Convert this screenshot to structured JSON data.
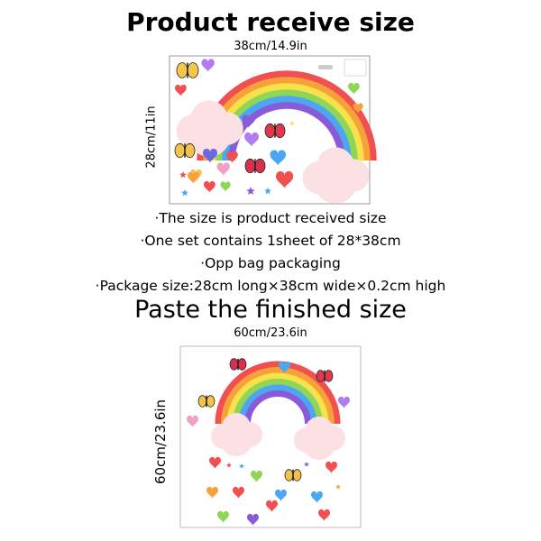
{
  "section1": {
    "title": "Product receive size",
    "width_label": "38cm/14.9in",
    "height_label": "28cm/11in"
  },
  "notes": [
    "·The size is product received size",
    "·One set contains 1sheet of 28*38cm",
    "·Opp bag packaging",
    "·Package size:28cm long×38cm wide×0.2cm high"
  ],
  "section2": {
    "title": "Paste the finished size",
    "width_label": "60cm/23.6in",
    "height_label": "60cm/23.6in"
  }
}
